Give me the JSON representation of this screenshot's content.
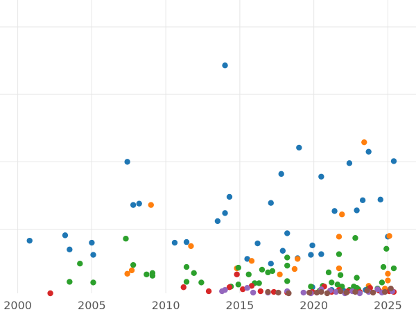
{
  "chart_data": {
    "type": "scatter",
    "title": "",
    "xlabel": "",
    "ylabel": "",
    "xlim": [
      1998.8,
      2026.9
    ],
    "ylim": [
      0,
      4.35
    ],
    "xticks": [
      2000,
      2005,
      2010,
      2015,
      2020,
      2025
    ],
    "yticks": [
      0.95,
      1.95,
      2.95,
      3.95
    ],
    "grid": true,
    "legend": "none",
    "series": [
      {
        "color": "#1f77b4",
        "points": [
          [
            2000.8,
            0.78
          ],
          [
            2003.2,
            0.86
          ],
          [
            2003.5,
            0.65
          ],
          [
            2005.0,
            0.75
          ],
          [
            2005.1,
            0.57
          ],
          [
            2007.4,
            1.95
          ],
          [
            2007.8,
            1.31
          ],
          [
            2008.2,
            1.33
          ],
          [
            2010.6,
            0.75
          ],
          [
            2011.4,
            0.76
          ],
          [
            2013.5,
            1.07
          ],
          [
            2014.0,
            1.19
          ],
          [
            2014.0,
            3.38
          ],
          [
            2014.3,
            1.43
          ],
          [
            2015.5,
            0.51
          ],
          [
            2016.2,
            0.74
          ],
          [
            2017.1,
            1.34
          ],
          [
            2017.1,
            0.44
          ],
          [
            2017.8,
            1.77
          ],
          [
            2017.9,
            0.63
          ],
          [
            2018.2,
            0.89
          ],
          [
            2018.9,
            0.52
          ],
          [
            2019.0,
            2.16
          ],
          [
            2019.8,
            0.57
          ],
          [
            2019.9,
            0.71
          ],
          [
            2020.5,
            1.73
          ],
          [
            2020.5,
            0.58
          ],
          [
            2021.4,
            1.22
          ],
          [
            2022.4,
            1.93
          ],
          [
            2022.9,
            1.23
          ],
          [
            2023.3,
            1.38
          ],
          [
            2023.7,
            2.1
          ],
          [
            2024.5,
            1.39
          ],
          [
            2025.0,
            0.84
          ],
          [
            2025.4,
            1.96
          ],
          [
            2019.9,
            0.09
          ],
          [
            2021.2,
            0.05
          ],
          [
            2022.0,
            0.04
          ],
          [
            2023.5,
            0.05
          ],
          [
            2024.9,
            0.04
          ]
        ]
      },
      {
        "color": "#ff7f0e",
        "points": [
          [
            2007.4,
            0.29
          ],
          [
            2007.7,
            0.34
          ],
          [
            2009.0,
            1.31
          ],
          [
            2011.7,
            0.7
          ],
          [
            2014.8,
            0.37
          ],
          [
            2015.8,
            0.48
          ],
          [
            2017.7,
            0.28
          ],
          [
            2018.7,
            0.36
          ],
          [
            2018.9,
            0.51
          ],
          [
            2021.7,
            0.84
          ],
          [
            2021.7,
            0.37
          ],
          [
            2021.9,
            1.17
          ],
          [
            2023.4,
            2.24
          ],
          [
            2023.7,
            0.11
          ],
          [
            2025.0,
            0.19
          ],
          [
            2025.1,
            0.85
          ],
          [
            2025.0,
            0.29
          ],
          [
            2024.8,
            0.07
          ]
        ]
      },
      {
        "color": "#2ca02c",
        "points": [
          [
            2003.5,
            0.17
          ],
          [
            2004.2,
            0.44
          ],
          [
            2005.1,
            0.16
          ],
          [
            2007.3,
            0.81
          ],
          [
            2007.8,
            0.42
          ],
          [
            2008.7,
            0.28
          ],
          [
            2009.1,
            0.3
          ],
          [
            2009.1,
            0.26
          ],
          [
            2011.4,
            0.39
          ],
          [
            2011.4,
            0.17
          ],
          [
            2011.9,
            0.3
          ],
          [
            2012.4,
            0.16
          ],
          [
            2014.4,
            0.1
          ],
          [
            2014.9,
            0.38
          ],
          [
            2014.9,
            0.13
          ],
          [
            2015.6,
            0.28
          ],
          [
            2016.0,
            0.15
          ],
          [
            2016.3,
            0.15
          ],
          [
            2016.5,
            0.35
          ],
          [
            2016.9,
            0.31
          ],
          [
            2017.2,
            0.33
          ],
          [
            2018.2,
            0.53
          ],
          [
            2018.2,
            0.41
          ],
          [
            2018.2,
            0.18
          ],
          [
            2019.8,
            0.1
          ],
          [
            2020.6,
            0.11
          ],
          [
            2021.0,
            0.31
          ],
          [
            2021.2,
            0.16
          ],
          [
            2021.6,
            0.13
          ],
          [
            2021.7,
            0.58
          ],
          [
            2021.8,
            0.27
          ],
          [
            2021.9,
            0.1
          ],
          [
            2022.4,
            0.05
          ],
          [
            2022.7,
            0.1
          ],
          [
            2022.9,
            0.08
          ],
          [
            2022.8,
            0.82
          ],
          [
            2022.9,
            0.23
          ],
          [
            2023.7,
            0.07
          ],
          [
            2024.3,
            0.07
          ],
          [
            2024.6,
            0.16
          ],
          [
            2024.7,
            0.39
          ],
          [
            2024.9,
            0.66
          ],
          [
            2025.4,
            0.37
          ],
          [
            2020.4,
            0.04
          ],
          [
            2023.0,
            0.06
          ]
        ]
      },
      {
        "color": "#d62728",
        "points": [
          [
            2002.2,
            0.0
          ],
          [
            2011.2,
            0.09
          ],
          [
            2012.9,
            0.03
          ],
          [
            2014.3,
            0.09
          ],
          [
            2014.8,
            0.28
          ],
          [
            2015.8,
            0.11
          ],
          [
            2016.4,
            0.03
          ],
          [
            2017.3,
            0.02
          ],
          [
            2018.2,
            0.01
          ],
          [
            2020.7,
            0.1
          ],
          [
            2021.2,
            0.02
          ],
          [
            2021.7,
            0.05
          ],
          [
            2022.3,
            0.03
          ],
          [
            2023.8,
            0.08
          ],
          [
            2024.4,
            0.04
          ],
          [
            2025.1,
            0.03
          ],
          [
            2025.4,
            0.02
          ],
          [
            2019.9,
            0.02
          ],
          [
            2015.2,
            0.06
          ],
          [
            2023.1,
            0.02
          ]
        ]
      },
      {
        "color": "#9467bd",
        "points": [
          [
            2013.8,
            0.03
          ],
          [
            2014.0,
            0.05
          ],
          [
            2015.5,
            0.08
          ],
          [
            2016.9,
            0.01
          ],
          [
            2018.2,
            0.03
          ],
          [
            2019.3,
            0.01
          ],
          [
            2019.8,
            0.0
          ],
          [
            2020.5,
            0.06
          ],
          [
            2021.5,
            0.02
          ],
          [
            2022.6,
            0.03
          ],
          [
            2023.1,
            0.0
          ],
          [
            2023.7,
            0.02
          ],
          [
            2024.3,
            0.06
          ],
          [
            2024.6,
            0.01
          ],
          [
            2025.3,
            0.03
          ],
          [
            2021.1,
            0.04
          ],
          [
            2022.1,
            0.0
          ],
          [
            2015.9,
            0.01
          ]
        ]
      },
      {
        "color": "#8c564b",
        "points": [
          [
            2016.9,
            0.02
          ],
          [
            2017.6,
            0.01
          ],
          [
            2019.7,
            0.01
          ],
          [
            2020.2,
            0.01
          ],
          [
            2020.5,
            0.02
          ],
          [
            2021.8,
            0.03
          ],
          [
            2022.2,
            0.01
          ],
          [
            2022.8,
            0.02
          ],
          [
            2023.6,
            0.04
          ],
          [
            2024.0,
            0.01
          ],
          [
            2024.8,
            0.02
          ],
          [
            2025.2,
            0.07
          ],
          [
            2020.9,
            0.0
          ],
          [
            2018.3,
            0.0
          ]
        ]
      }
    ]
  }
}
